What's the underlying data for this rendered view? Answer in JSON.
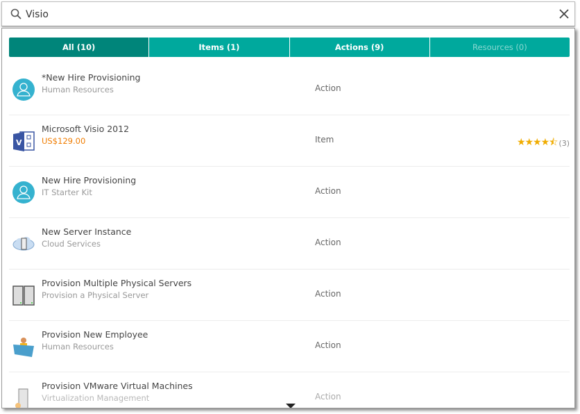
{
  "search": {
    "value": "Visio",
    "icon": "search-icon",
    "clear_icon": "close-icon"
  },
  "tabs": [
    {
      "label": "All (10)",
      "active": true
    },
    {
      "label": "Items (1)"
    },
    {
      "label": "Actions (9)"
    },
    {
      "label": "Resources (0)",
      "disabled": true
    }
  ],
  "results": [
    {
      "title": "*New Hire Provisioning",
      "subtitle": "Human Resources",
      "type": "Action",
      "icon": "user-circle-icon"
    },
    {
      "title": "Microsoft Visio 2012",
      "subtitle": "US$129.00",
      "type": "Item",
      "icon": "visio-icon",
      "rating": 4.5,
      "rating_count": "(3)"
    },
    {
      "title": "New Hire Provisioning",
      "subtitle": "IT Starter Kit",
      "type": "Action",
      "icon": "user-circle-icon"
    },
    {
      "title": "New Server Instance",
      "subtitle": "Cloud Services",
      "type": "Action",
      "icon": "cloud-server-icon"
    },
    {
      "title": "Provision Multiple Physical Servers",
      "subtitle": "Provision a Physical Server",
      "type": "Action",
      "icon": "servers-icon"
    },
    {
      "title": "Provision New Employee",
      "subtitle": "Human Resources",
      "type": "Action",
      "icon": "employee-folder-icon"
    },
    {
      "title": "Provision VMware Virtual Machines",
      "subtitle": "Virtualization Management",
      "type": "Action",
      "icon": "vm-server-icon"
    }
  ],
  "colors": {
    "tab_active": "#00857a",
    "tab": "#00a99d",
    "price": "#f07c00",
    "star": "#f0ac00"
  }
}
